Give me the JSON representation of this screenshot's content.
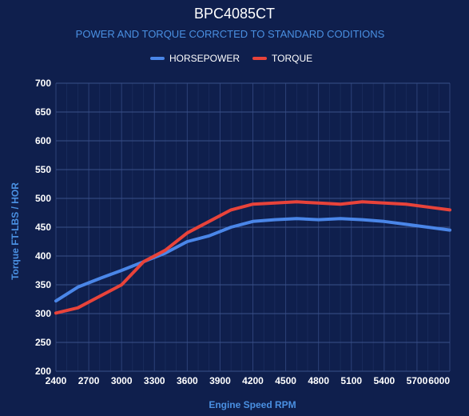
{
  "chart_data": {
    "type": "line",
    "title": "BPC4085CT",
    "subtitle": "POWER AND TORQUE CORRCTED TO STANDARD CODITIONS",
    "xlabel": "Engine Speed RPM",
    "ylabel": "Torque FT-LBS / HOR",
    "xlim": [
      2400,
      6000
    ],
    "ylim": [
      200,
      700
    ],
    "x_ticks": [
      2400,
      2700,
      3000,
      3300,
      3600,
      3900,
      4200,
      4500,
      4800,
      5100,
      5400,
      5700,
      6000
    ],
    "y_ticks": [
      200,
      250,
      300,
      350,
      400,
      450,
      500,
      550,
      600,
      650,
      700
    ],
    "legend_position": "top-center",
    "grid": true,
    "background_color": "#0f1f4d",
    "grid_color": "#2c4178",
    "series": [
      {
        "name": "HORSEPOWER",
        "color": "#4a86e8",
        "points": [
          [
            2400,
            322
          ],
          [
            2600,
            346
          ],
          [
            2800,
            361
          ],
          [
            3000,
            375
          ],
          [
            3200,
            390
          ],
          [
            3400,
            405
          ],
          [
            3600,
            425
          ],
          [
            3800,
            435
          ],
          [
            4000,
            450
          ],
          [
            4200,
            460
          ],
          [
            4400,
            463
          ],
          [
            4600,
            465
          ],
          [
            4800,
            463
          ],
          [
            5000,
            465
          ],
          [
            5200,
            463
          ],
          [
            5400,
            460
          ],
          [
            5600,
            455
          ],
          [
            5800,
            450
          ],
          [
            6000,
            445
          ]
        ]
      },
      {
        "name": "TORQUE",
        "color": "#e8433a",
        "points": [
          [
            2400,
            301
          ],
          [
            2600,
            310
          ],
          [
            2800,
            330
          ],
          [
            3000,
            350
          ],
          [
            3200,
            390
          ],
          [
            3400,
            410
          ],
          [
            3600,
            440
          ],
          [
            3800,
            460
          ],
          [
            4000,
            480
          ],
          [
            4200,
            490
          ],
          [
            4400,
            492
          ],
          [
            4600,
            494
          ],
          [
            4800,
            492
          ],
          [
            5000,
            490
          ],
          [
            5200,
            494
          ],
          [
            5400,
            492
          ],
          [
            5600,
            490
          ],
          [
            5800,
            485
          ],
          [
            6000,
            480
          ]
        ]
      }
    ]
  }
}
